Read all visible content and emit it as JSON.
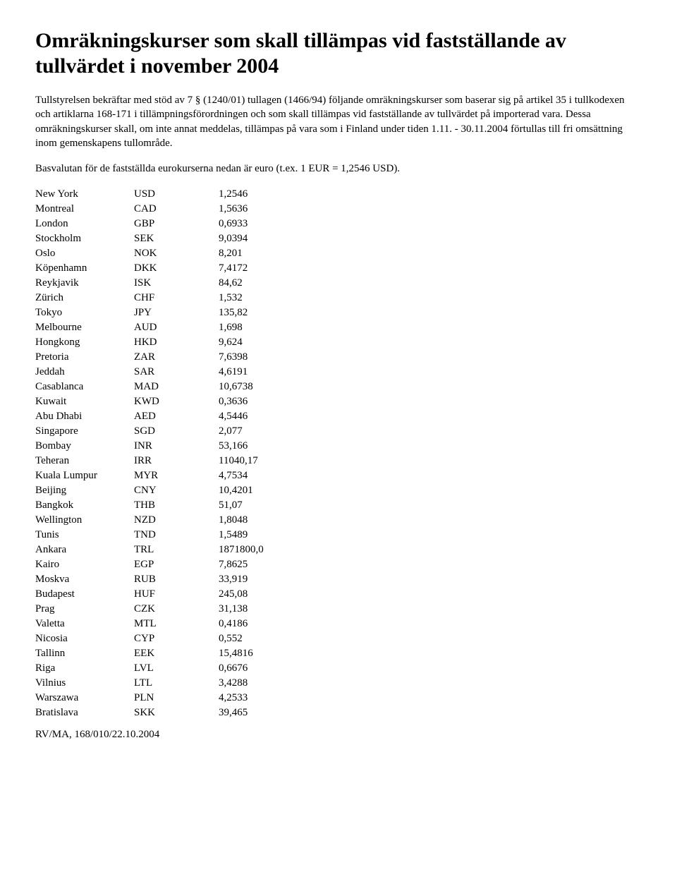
{
  "title": "Omräkningskurser som skall tillämpas vid fastställande av tullvärdet i november 2004",
  "paragraph1": "Tullstyrelsen bekräftar med stöd av 7 § (1240/01) tullagen (1466/94) följande omräkningskurser som baserar sig på artikel 35 i tullkodexen och artiklarna 168-171 i tillämpningsförordningen och som skall tillämpas vid fastställande av tullvärdet på importerad vara. Dessa omräkningskurser skall, om inte annat meddelas, tillämpas på vara som i Finland under tiden 1.11. - 30.11.2004 förtullas till fri omsättning inom gemenskapens tullområde.",
  "paragraph2": "Basvalutan för de fastställda eurokurserna nedan är euro (t.ex. 1 EUR = 1,2546 USD).",
  "rates": [
    {
      "city": "New York",
      "code": "USD",
      "rate": "1,2546"
    },
    {
      "city": "Montreal",
      "code": "CAD",
      "rate": "1,5636"
    },
    {
      "city": "London",
      "code": "GBP",
      "rate": "0,6933"
    },
    {
      "city": "Stockholm",
      "code": "SEK",
      "rate": "9,0394"
    },
    {
      "city": "Oslo",
      "code": "NOK",
      "rate": "8,201"
    },
    {
      "city": "Köpenhamn",
      "code": "DKK",
      "rate": "7,4172"
    },
    {
      "city": "Reykjavik",
      "code": "ISK",
      "rate": "84,62"
    },
    {
      "city": "Zürich",
      "code": "CHF",
      "rate": "1,532"
    },
    {
      "city": "Tokyo",
      "code": "JPY",
      "rate": "135,82"
    },
    {
      "city": "Melbourne",
      "code": "AUD",
      "rate": "1,698"
    },
    {
      "city": "Hongkong",
      "code": "HKD",
      "rate": "9,624"
    },
    {
      "city": "Pretoria",
      "code": "ZAR",
      "rate": "7,6398"
    },
    {
      "city": "Jeddah",
      "code": "SAR",
      "rate": "4,6191"
    },
    {
      "city": "Casablanca",
      "code": "MAD",
      "rate": "10,6738"
    },
    {
      "city": "Kuwait",
      "code": "KWD",
      "rate": "0,3636"
    },
    {
      "city": "Abu Dhabi",
      "code": "AED",
      "rate": "4,5446"
    },
    {
      "city": "Singapore",
      "code": "SGD",
      "rate": "2,077"
    },
    {
      "city": "Bombay",
      "code": "INR",
      "rate": "53,166"
    },
    {
      "city": "Teheran",
      "code": "IRR",
      "rate": "11040,17"
    },
    {
      "city": "Kuala Lumpur",
      "code": "MYR",
      "rate": "4,7534"
    },
    {
      "city": "Beijing",
      "code": "CNY",
      "rate": "10,4201"
    },
    {
      "city": "Bangkok",
      "code": "THB",
      "rate": "51,07"
    },
    {
      "city": "Wellington",
      "code": "NZD",
      "rate": "1,8048"
    },
    {
      "city": "Tunis",
      "code": "TND",
      "rate": "1,5489"
    },
    {
      "city": "Ankara",
      "code": "TRL",
      "rate": "1871800,0"
    },
    {
      "city": "Kairo",
      "code": "EGP",
      "rate": "7,8625"
    },
    {
      "city": "Moskva",
      "code": "RUB",
      "rate": "33,919"
    },
    {
      "city": "Budapest",
      "code": "HUF",
      "rate": "245,08"
    },
    {
      "city": "Prag",
      "code": "CZK",
      "rate": "31,138"
    },
    {
      "city": "Valetta",
      "code": "MTL",
      "rate": "0,4186"
    },
    {
      "city": "Nicosia",
      "code": "CYP",
      "rate": "0,552"
    },
    {
      "city": "Tallinn",
      "code": "EEK",
      "rate": "15,4816"
    },
    {
      "city": "Riga",
      "code": "LVL",
      "rate": "0,6676"
    },
    {
      "city": "Vilnius",
      "code": "LTL",
      "rate": "3,4288"
    },
    {
      "city": "Warszawa",
      "code": "PLN",
      "rate": "4,2533"
    },
    {
      "city": "Bratislava",
      "code": "SKK",
      "rate": "39,465"
    }
  ],
  "footer": "RV/MA, 168/010/22.10.2004",
  "styling": {
    "font_family": "Times New Roman",
    "title_fontsize": 30,
    "title_fontweight": "bold",
    "body_fontsize": 15,
    "text_color": "#000000",
    "background_color": "#ffffff",
    "col_city_width": 140,
    "col_code_width": 120,
    "col_rate_width": 150,
    "line_height": 1.35
  }
}
